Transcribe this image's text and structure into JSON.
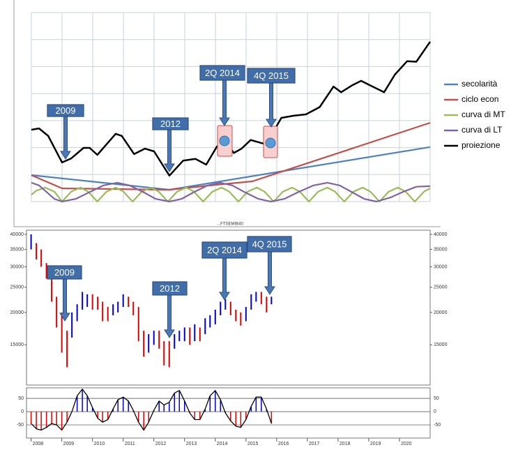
{
  "chart_data": [
    {
      "type": "line",
      "legend": "right",
      "xlim": [
        2008,
        2021
      ],
      "ylim": [
        0,
        7
      ],
      "series": [
        {
          "name": "secolarità",
          "color": "#4f81bd",
          "x": [
            2008,
            2012.5,
            2021
          ],
          "values": [
            0.98,
            0.44,
            2.02
          ]
        },
        {
          "name": "ciclo econ",
          "color": "#c0504d",
          "x": [
            2008,
            2009,
            2012.5,
            2014,
            2015.2,
            2021
          ],
          "values": [
            0.98,
            0.49,
            0.44,
            0.62,
            0.75,
            2.92
          ]
        },
        {
          "name": "curva di MT",
          "color": "#9bbb59",
          "x": [
            2008,
            2008.15,
            2008.45,
            2008.75,
            2009,
            2009.3,
            2009.6,
            2009.85,
            2010.15,
            2010.45,
            2010.75,
            2011,
            2011.3,
            2011.6,
            2011.9,
            2012.15,
            2012.45,
            2012.75,
            2013.05,
            2013.3,
            2013.6,
            2013.9,
            2014.2,
            2014.45,
            2014.75,
            2015.05,
            2015.35,
            2015.6,
            2015.9,
            2016.2,
            2016.5,
            2016.75,
            2017.05,
            2017.35,
            2017.65,
            2017.9,
            2018.2,
            2018.5,
            2018.8,
            2019.05,
            2019.35,
            2019.65,
            2019.95,
            2020.2,
            2020.5,
            2020.8,
            2021
          ],
          "values": [
            0.25,
            0.4,
            0.52,
            0.37,
            0,
            0.37,
            0.52,
            0.37,
            0,
            0.37,
            0.52,
            0.37,
            0,
            0.37,
            0.52,
            0.37,
            0,
            0.37,
            0.52,
            0.37,
            0,
            0.37,
            0.52,
            0.37,
            0,
            0.37,
            0.52,
            0.37,
            0,
            0.37,
            0.52,
            0.37,
            0,
            0.37,
            0.52,
            0.37,
            0,
            0.37,
            0.52,
            0.37,
            0,
            0.37,
            0.52,
            0.37,
            0,
            0.37,
            0.49
          ]
        },
        {
          "name": "curva di LT",
          "color": "#8064a2",
          "x": [
            2008,
            2008.25,
            2008.5,
            2008.75,
            2009,
            2009.45,
            2009.9,
            2010.35,
            2010.8,
            2011.2,
            2011.65,
            2012.05,
            2012.5,
            2012.9,
            2013.3,
            2013.75,
            2014.15,
            2014.55,
            2014.95,
            2015.4,
            2015.8,
            2016.25,
            2016.7,
            2017.2,
            2017.65,
            2018.05,
            2018.45,
            2018.85,
            2019.25,
            2019.7,
            2020.1,
            2020.55,
            2021
          ],
          "values": [
            0.7,
            0.6,
            0.35,
            0.1,
            0,
            0.1,
            0.35,
            0.6,
            0.7,
            0.6,
            0.35,
            0.1,
            0,
            0.1,
            0.35,
            0.6,
            0.7,
            0.6,
            0.35,
            0.1,
            0,
            0.1,
            0.35,
            0.6,
            0.7,
            0.6,
            0.35,
            0.1,
            0,
            0.15,
            0.35,
            0.55,
            0.57
          ]
        },
        {
          "name": "proiezione",
          "color": "#000000",
          "x": [
            2008,
            2008.25,
            2008.55,
            2009,
            2009.3,
            2009.7,
            2009.9,
            2010.15,
            2010.75,
            2010.95,
            2011.35,
            2011.7,
            2012,
            2012.5,
            2012.95,
            2013.35,
            2013.7,
            2014.05,
            2014.3,
            2014.6,
            2014.85,
            2015.15,
            2015.4,
            2015.65,
            2016.15,
            2016.55,
            2016.95,
            2017.4,
            2017.85,
            2018.1,
            2018.45,
            2018.75,
            2019.05,
            2019.5,
            2019.85,
            2020.25,
            2020.55,
            2021
          ],
          "values": [
            2.66,
            2.71,
            2.43,
            1.45,
            1.6,
            1.99,
            1.99,
            1.73,
            2.51,
            2.43,
            1.76,
            1.96,
            1.86,
            0.96,
            1.52,
            1.58,
            1.37,
            2.04,
            2.3,
            1.8,
            1.96,
            2.28,
            2.2,
            2.12,
            3.1,
            3.18,
            3.23,
            3.5,
            4.26,
            4.05,
            4.3,
            4.47,
            4.3,
            4.05,
            4.7,
            5.2,
            5.18,
            5.92
          ]
        }
      ],
      "annotations": [
        "2009",
        "2012",
        "2Q 2014",
        "4Q 2015"
      ]
    },
    {
      "type": "range-bar",
      "title": "...FTSEMIB40",
      "log_scale": true,
      "up_color": "#0000cc",
      "down_color": "#dd0000",
      "xlim": [
        2007.85,
        2021
      ],
      "xticks": [
        2008,
        2009,
        2010,
        2011,
        2012,
        2013,
        2014,
        2015,
        2016,
        2017,
        2018,
        2019,
        2020
      ],
      "ylim": [
        10500,
        41500
      ],
      "yticks": [
        15000,
        20000,
        25000,
        30000,
        35000,
        40000
      ],
      "x": [
        2008,
        2008.17,
        2008.33,
        2008.5,
        2008.67,
        2008.83,
        2009,
        2009.17,
        2009.33,
        2009.5,
        2009.67,
        2009.83,
        2010,
        2010.17,
        2010.33,
        2010.5,
        2010.67,
        2010.83,
        2011,
        2011.17,
        2011.33,
        2011.5,
        2011.67,
        2011.83,
        2012,
        2012.17,
        2012.33,
        2012.5,
        2012.67,
        2012.83,
        2013,
        2013.17,
        2013.33,
        2013.5,
        2013.67,
        2013.83,
        2014,
        2014.17,
        2014.33,
        2014.5,
        2014.67,
        2014.83,
        2015,
        2015.17,
        2015.33,
        2015.5,
        2015.67,
        2015.83
      ],
      "high": [
        40000,
        37000,
        35000,
        31000,
        28000,
        23000,
        20000,
        17000,
        20000,
        21500,
        24000,
        23500,
        23500,
        23000,
        22000,
        21000,
        21500,
        22000,
        23500,
        23000,
        22000,
        21000,
        17000,
        16500,
        17000,
        17000,
        15500,
        15500,
        16500,
        17000,
        17500,
        17500,
        18000,
        17500,
        19000,
        19500,
        20500,
        22000,
        22500,
        22000,
        20500,
        20000,
        21000,
        23500,
        24000,
        24000,
        23000,
        23000
      ],
      "low": [
        35000,
        32000,
        30000,
        27000,
        22000,
        17500,
        14000,
        12300,
        16000,
        18500,
        20500,
        21000,
        20500,
        20500,
        18500,
        18500,
        19500,
        20000,
        21000,
        21000,
        19500,
        15500,
        13500,
        14000,
        15000,
        14500,
        12500,
        12300,
        14500,
        15500,
        15500,
        15000,
        15500,
        15500,
        16500,
        17500,
        18000,
        19500,
        20500,
        19500,
        18500,
        17800,
        18500,
        20500,
        22000,
        21500,
        20000,
        21500
      ],
      "indicator": {
        "type": "area",
        "ylim": [
          -100,
          90
        ],
        "yticks": [
          -50,
          0,
          50
        ],
        "pos_color": "#0000cc",
        "neg_color": "#dd0000",
        "values": [
          -45,
          -65,
          -70,
          -60,
          -45,
          -50,
          -70,
          -40,
          0,
          60,
          85,
          60,
          15,
          -25,
          -40,
          -30,
          10,
          45,
          55,
          40,
          5,
          -40,
          -70,
          -40,
          5,
          40,
          25,
          35,
          70,
          80,
          40,
          -5,
          -30,
          -30,
          10,
          60,
          80,
          45,
          -5,
          -35,
          -55,
          -60,
          -30,
          20,
          55,
          55,
          10,
          -45
        ]
      },
      "annotations": [
        "2009",
        "2012",
        "2Q 2014",
        "4Q 2015"
      ]
    }
  ]
}
